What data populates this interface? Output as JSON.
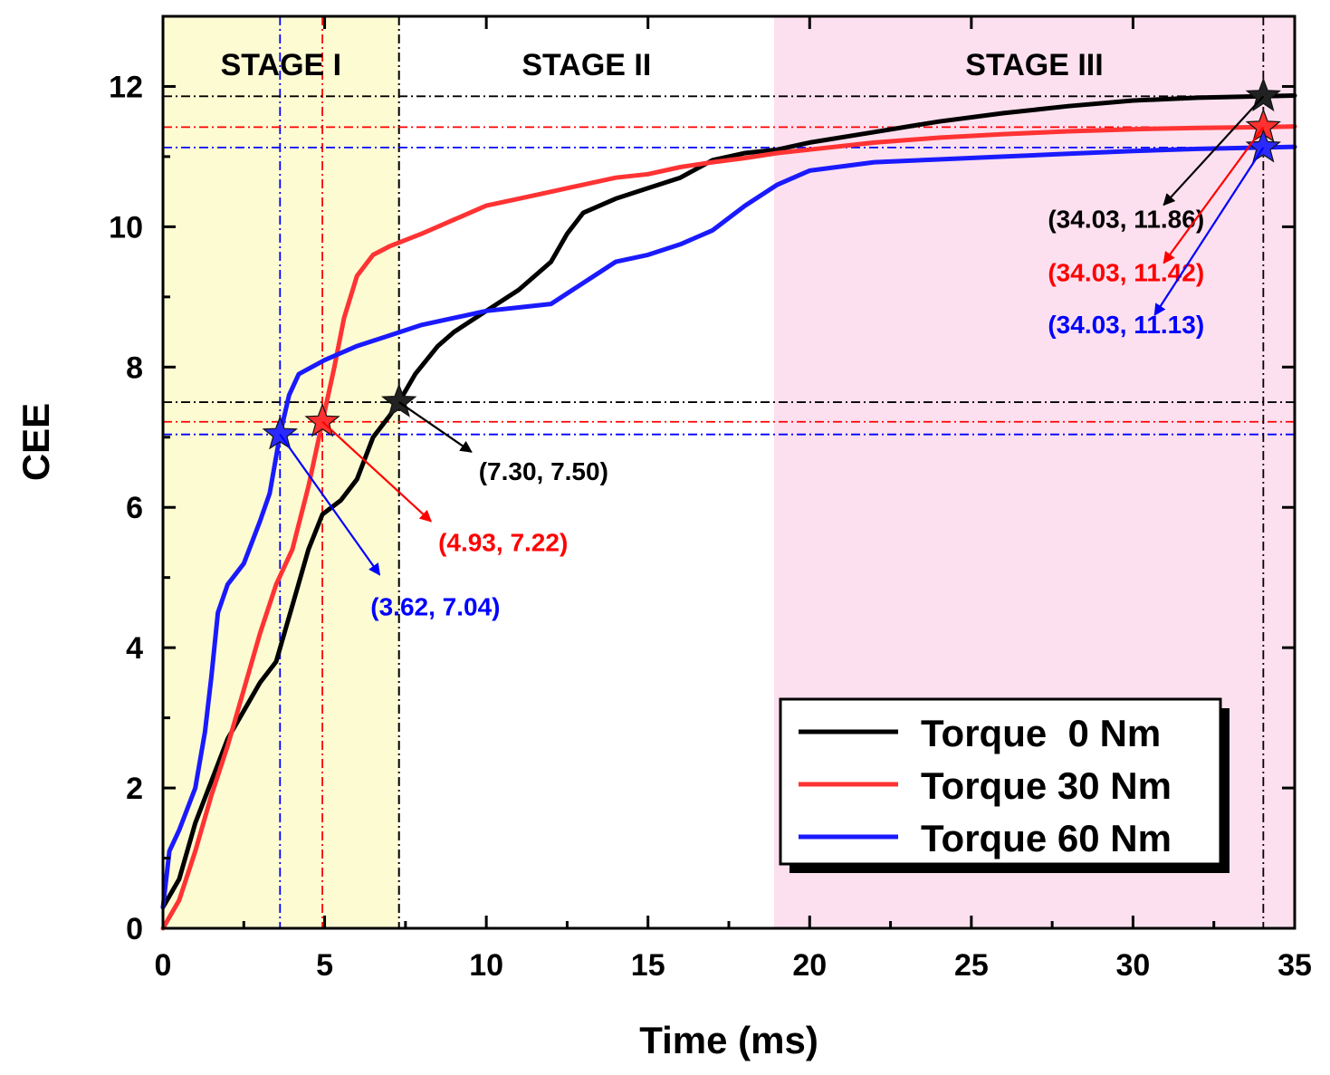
{
  "chart_data": {
    "type": "line",
    "title": "",
    "xlabel": "Time (ms)",
    "ylabel": "CEE",
    "xlim": [
      0,
      35
    ],
    "ylim": [
      0,
      13
    ],
    "x_ticks": [
      0,
      5,
      10,
      15,
      20,
      25,
      30,
      35
    ],
    "y_ticks": [
      0,
      2,
      4,
      6,
      8,
      10,
      12
    ],
    "stages": [
      {
        "label": "STAGE I",
        "x_start": 0,
        "x_end": 7.3,
        "color": "#fdfbd2"
      },
      {
        "label": "STAGE II",
        "x_start": 7.3,
        "x_end": 18.9,
        "color": "#ffffff"
      },
      {
        "label": "STAGE III",
        "x_start": 18.9,
        "x_end": 35,
        "color": "#fde0ef"
      }
    ],
    "series": [
      {
        "name": "Torque  0 Nm",
        "color": "#000000",
        "points": [
          [
            0,
            0.3
          ],
          [
            0.5,
            0.7
          ],
          [
            1,
            1.5
          ],
          [
            1.5,
            2.1
          ],
          [
            2,
            2.7
          ],
          [
            2.5,
            3.1
          ],
          [
            3,
            3.5
          ],
          [
            3.5,
            3.8
          ],
          [
            4,
            4.6
          ],
          [
            4.5,
            5.4
          ],
          [
            4.93,
            5.9
          ],
          [
            5.5,
            6.1
          ],
          [
            6,
            6.4
          ],
          [
            6.5,
            7.0
          ],
          [
            7,
            7.3
          ],
          [
            7.3,
            7.5
          ],
          [
            7.8,
            7.9
          ],
          [
            8.5,
            8.3
          ],
          [
            9,
            8.5
          ],
          [
            10,
            8.8
          ],
          [
            11,
            9.1
          ],
          [
            12,
            9.5
          ],
          [
            12.5,
            9.9
          ],
          [
            13,
            10.2
          ],
          [
            14,
            10.4
          ],
          [
            15,
            10.55
          ],
          [
            16,
            10.7
          ],
          [
            17,
            10.95
          ],
          [
            18,
            11.05
          ],
          [
            19,
            11.1
          ],
          [
            20,
            11.2
          ],
          [
            22,
            11.35
          ],
          [
            24,
            11.5
          ],
          [
            26,
            11.62
          ],
          [
            28,
            11.72
          ],
          [
            30,
            11.8
          ],
          [
            32,
            11.84
          ],
          [
            34.03,
            11.86
          ],
          [
            35,
            11.87
          ]
        ]
      },
      {
        "name": "Torque 30 Nm",
        "color": "#ff3333",
        "points": [
          [
            0,
            0
          ],
          [
            0.5,
            0.4
          ],
          [
            1,
            1.1
          ],
          [
            1.5,
            1.9
          ],
          [
            2,
            2.6
          ],
          [
            2.5,
            3.4
          ],
          [
            3,
            4.2
          ],
          [
            3.5,
            4.9
          ],
          [
            4,
            5.4
          ],
          [
            4.5,
            6.3
          ],
          [
            4.93,
            7.22
          ],
          [
            5.3,
            8.0
          ],
          [
            5.6,
            8.7
          ],
          [
            6,
            9.3
          ],
          [
            6.5,
            9.6
          ],
          [
            7,
            9.72
          ],
          [
            8,
            9.9
          ],
          [
            9,
            10.1
          ],
          [
            10,
            10.3
          ],
          [
            11,
            10.4
          ],
          [
            12,
            10.5
          ],
          [
            13,
            10.6
          ],
          [
            14,
            10.7
          ],
          [
            15,
            10.75
          ],
          [
            16,
            10.85
          ],
          [
            17,
            10.92
          ],
          [
            18,
            10.98
          ],
          [
            19,
            11.05
          ],
          [
            20,
            11.1
          ],
          [
            22,
            11.2
          ],
          [
            24,
            11.27
          ],
          [
            26,
            11.32
          ],
          [
            28,
            11.36
          ],
          [
            30,
            11.39
          ],
          [
            32,
            11.41
          ],
          [
            34.03,
            11.42
          ],
          [
            35,
            11.43
          ]
        ]
      },
      {
        "name": "Torque 60 Nm",
        "color": "#1a1aff",
        "points": [
          [
            0,
            0.3
          ],
          [
            0.2,
            1.1
          ],
          [
            0.5,
            1.4
          ],
          [
            1,
            2.0
          ],
          [
            1.3,
            2.8
          ],
          [
            1.5,
            3.6
          ],
          [
            1.7,
            4.5
          ],
          [
            2,
            4.9
          ],
          [
            2.5,
            5.2
          ],
          [
            3,
            5.8
          ],
          [
            3.3,
            6.2
          ],
          [
            3.62,
            7.04
          ],
          [
            3.9,
            7.6
          ],
          [
            4.2,
            7.9
          ],
          [
            5,
            8.1
          ],
          [
            6,
            8.3
          ],
          [
            7,
            8.45
          ],
          [
            8,
            8.6
          ],
          [
            9,
            8.7
          ],
          [
            10,
            8.8
          ],
          [
            11,
            8.85
          ],
          [
            12,
            8.9
          ],
          [
            13,
            9.2
          ],
          [
            14,
            9.5
          ],
          [
            15,
            9.6
          ],
          [
            16,
            9.75
          ],
          [
            17,
            9.95
          ],
          [
            18,
            10.3
          ],
          [
            19,
            10.6
          ],
          [
            20,
            10.8
          ],
          [
            22,
            10.92
          ],
          [
            24,
            10.96
          ],
          [
            26,
            11.0
          ],
          [
            28,
            11.04
          ],
          [
            30,
            11.08
          ],
          [
            32,
            11.11
          ],
          [
            34.03,
            11.13
          ],
          [
            35,
            11.14
          ]
        ]
      }
    ],
    "markers": [
      {
        "series": "Torque  0 Nm",
        "x": 7.3,
        "y": 7.5,
        "label": "(7.30, 7.50)",
        "color": "#000000"
      },
      {
        "series": "Torque 30 Nm",
        "x": 4.93,
        "y": 7.22,
        "label": "(4.93, 7.22)",
        "color": "#ff0000"
      },
      {
        "series": "Torque 60 Nm",
        "x": 3.62,
        "y": 7.04,
        "label": "(3.62, 7.04)",
        "color": "#0000ff"
      },
      {
        "series": "Torque  0 Nm",
        "x": 34.03,
        "y": 11.86,
        "label": "(34.03, 11.86)",
        "color": "#000000"
      },
      {
        "series": "Torque 30 Nm",
        "x": 34.03,
        "y": 11.42,
        "label": "(34.03, 11.42)",
        "color": "#ff0000"
      },
      {
        "series": "Torque 60 Nm",
        "x": 34.03,
        "y": 11.13,
        "label": "(34.03, 11.13)",
        "color": "#0000ff"
      }
    ],
    "legend": {
      "position": "bottom-right",
      "entries": [
        "Torque  0 Nm",
        "Torque 30 Nm",
        "Torque 60 Nm"
      ]
    },
    "grid": false
  }
}
